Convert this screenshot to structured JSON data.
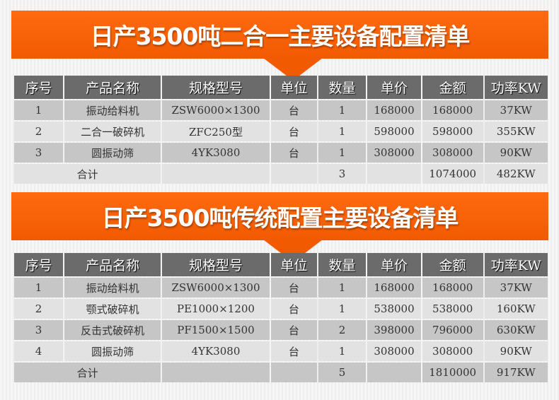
{
  "headers": [
    "序号",
    "产品名称",
    "规格型号",
    "单位",
    "数量",
    "单价",
    "金额",
    "功率KW"
  ],
  "table1": {
    "title": "日产3500吨二合一主要设备配置清单",
    "rows": [
      [
        "1",
        "振动给料机",
        "ZSW6000×1300",
        "台",
        "1",
        "168000",
        "168000",
        "37KW"
      ],
      [
        "2",
        "二合一破碎机",
        "ZFC250型",
        "台",
        "1",
        "598000",
        "598000",
        "355KW"
      ],
      [
        "3",
        "圆振动筛",
        "4YK3080",
        "台",
        "1",
        "308000",
        "308000",
        "90KW"
      ]
    ],
    "total": {
      "label": "合计",
      "qty": "3",
      "amount": "1074000",
      "power": "482KW"
    }
  },
  "table2": {
    "title": "日产3500吨传统配置主要设备清单",
    "rows": [
      [
        "1",
        "振动给料机",
        "ZSW6000×1300",
        "台",
        "1",
        "168000",
        "168000",
        "37KW"
      ],
      [
        "2",
        "颚式破碎机",
        "PE1000×1200",
        "台",
        "1",
        "538000",
        "538000",
        "160KW"
      ],
      [
        "3",
        "反击式破碎机",
        "PF1500×1500",
        "台",
        "2",
        "398000",
        "796000",
        "630KW"
      ],
      [
        "4",
        "圆振动筛",
        "4YK3080",
        "台",
        "1",
        "308000",
        "308000",
        "90KW"
      ]
    ],
    "total": {
      "label": "合计",
      "qty": "5",
      "amount": "1810000",
      "power": "917KW"
    }
  },
  "colors": {
    "banner": "#f15a00",
    "header": "#6b6b6b"
  }
}
